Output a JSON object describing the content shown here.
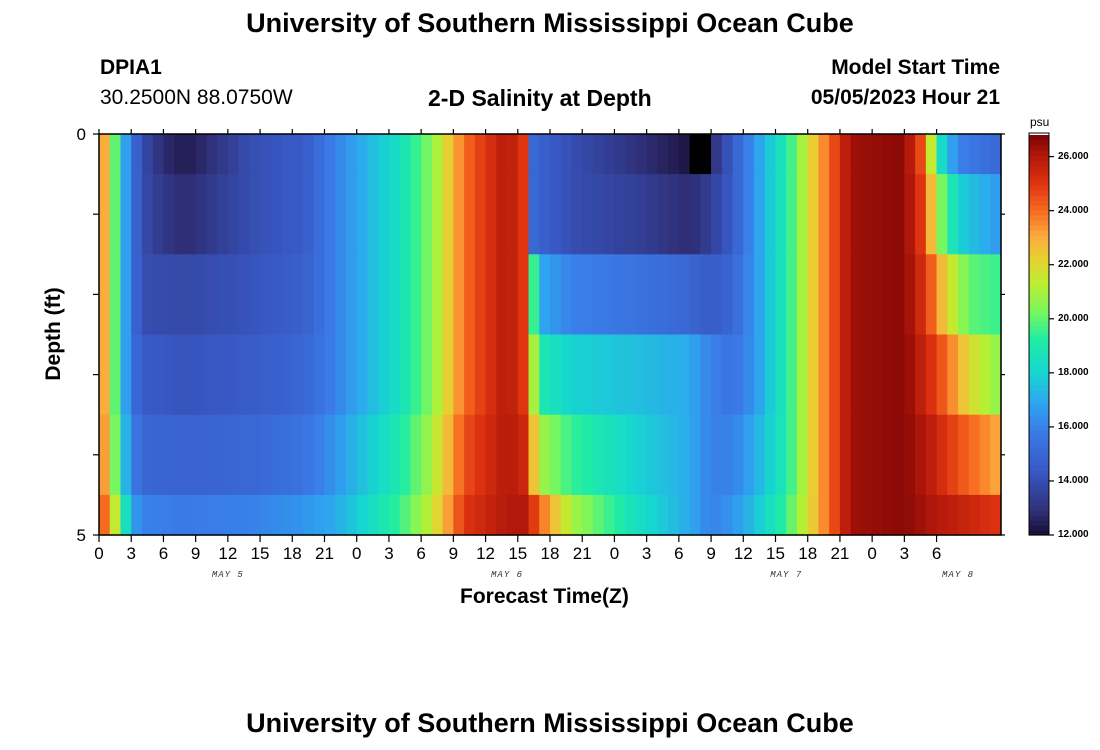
{
  "header": {
    "title": "University of Southern Mississippi Ocean Cube",
    "station": "DPIA1",
    "coords": "30.2500N  88.0750W",
    "plot_title": "2-D Salinity at Depth",
    "model_start_label": "Model Start Time",
    "model_start_value": "05/05/2023 Hour 21"
  },
  "footer": {
    "title": "University of Southern Mississippi Ocean Cube"
  },
  "colorbar": {
    "unit": "psu",
    "min": 12.0,
    "max": 26.8,
    "tick_labels": [
      "26.000",
      "24.000",
      "22.000",
      "20.000",
      "18.000",
      "16.000",
      "14.000",
      "12.000"
    ],
    "tick_values": [
      26,
      24,
      22,
      20,
      18,
      16,
      14,
      12
    ]
  },
  "chart_data": {
    "type": "heatmap",
    "title": "2-D Salinity at Depth",
    "xlabel": "Forecast Time(Z)",
    "ylabel": "Depth (ft)",
    "x_hours": [
      0,
      84
    ],
    "y_range": [
      0,
      5
    ],
    "y_tick_labels": [
      "0",
      "5"
    ],
    "x_tick_labels": [
      "0",
      "3",
      "6",
      "9",
      "12",
      "15",
      "18",
      "21",
      "0",
      "3",
      "6",
      "9",
      "12",
      "15",
      "18",
      "21",
      "0",
      "3",
      "6",
      "9",
      "12",
      "15",
      "18",
      "21",
      "0",
      "3",
      "6"
    ],
    "day_labels": [
      {
        "label": "MAY 5",
        "hour": 12
      },
      {
        "label": "MAY 6",
        "hour": 38
      },
      {
        "label": "MAY 7",
        "hour": 64
      },
      {
        "label": "MAY 8",
        "hour": 80
      }
    ],
    "layers": [
      "0-0.5 ft",
      "0.5-1.5 ft",
      "1.5-2.5 ft",
      "2.5-3.5 ft",
      "3.5-4.5 ft",
      "4.5-5 ft"
    ],
    "series": [
      {
        "name": "0-0.5 ft",
        "keyframes": [
          [
            0,
            24
          ],
          [
            1,
            22
          ],
          [
            2,
            18
          ],
          [
            3,
            15.5
          ],
          [
            4,
            14
          ],
          [
            6,
            12.8
          ],
          [
            8,
            12.4
          ],
          [
            10,
            12.8
          ],
          [
            14,
            14
          ],
          [
            19,
            14.5
          ],
          [
            22,
            16
          ],
          [
            28,
            18.5
          ],
          [
            31,
            20.5
          ],
          [
            34,
            24
          ],
          [
            38,
            26
          ],
          [
            39.5,
            25
          ],
          [
            40,
            22
          ],
          [
            40.5,
            15
          ],
          [
            44,
            14
          ],
          [
            50,
            13
          ],
          [
            55,
            12.2
          ],
          [
            55.5,
            11.5
          ],
          [
            56.5,
            11.5
          ],
          [
            57,
            12.8
          ],
          [
            59,
            14.5
          ],
          [
            61,
            16.5
          ],
          [
            64,
            19
          ],
          [
            67,
            23
          ],
          [
            70,
            26.3
          ],
          [
            75,
            26.6
          ],
          [
            77,
            24
          ],
          [
            78,
            19
          ],
          [
            80,
            16
          ],
          [
            84,
            15
          ]
        ]
      },
      {
        "name": "0.5-1.5 ft",
        "keyframes": [
          [
            0,
            24
          ],
          [
            1,
            22
          ],
          [
            2,
            18
          ],
          [
            3,
            15.5
          ],
          [
            4,
            14
          ],
          [
            6,
            13.2
          ],
          [
            8,
            12.8
          ],
          [
            10,
            13.2
          ],
          [
            14,
            14
          ],
          [
            19,
            14.5
          ],
          [
            22,
            16
          ],
          [
            28,
            18.5
          ],
          [
            31,
            20.5
          ],
          [
            34,
            24
          ],
          [
            38,
            26
          ],
          [
            39.5,
            25
          ],
          [
            40,
            22
          ],
          [
            40.5,
            15
          ],
          [
            44,
            14
          ],
          [
            50,
            13.5
          ],
          [
            55,
            12.8
          ],
          [
            57,
            13.5
          ],
          [
            59,
            14.5
          ],
          [
            61,
            16.5
          ],
          [
            64,
            19
          ],
          [
            67,
            23
          ],
          [
            70,
            26.3
          ],
          [
            75,
            26.6
          ],
          [
            77,
            24.5
          ],
          [
            78,
            21
          ],
          [
            80,
            18
          ],
          [
            84,
            16.5
          ]
        ]
      },
      {
        "name": "1.5-2.5 ft",
        "keyframes": [
          [
            0,
            24
          ],
          [
            1,
            22
          ],
          [
            2,
            18
          ],
          [
            3,
            15.5
          ],
          [
            4,
            14
          ],
          [
            8,
            13.8
          ],
          [
            14,
            14.2
          ],
          [
            19,
            14.7
          ],
          [
            22,
            16
          ],
          [
            28,
            18.5
          ],
          [
            31,
            20.5
          ],
          [
            34,
            24
          ],
          [
            38,
            26
          ],
          [
            39.5,
            25
          ],
          [
            40,
            22
          ],
          [
            41,
            17
          ],
          [
            44,
            16
          ],
          [
            50,
            15.5
          ],
          [
            55,
            15
          ],
          [
            57,
            14.5
          ],
          [
            59,
            15
          ],
          [
            61,
            16.5
          ],
          [
            64,
            19
          ],
          [
            67,
            23
          ],
          [
            70,
            26.3
          ],
          [
            75,
            26.6
          ],
          [
            77,
            25
          ],
          [
            79,
            22
          ],
          [
            81,
            20
          ],
          [
            84,
            19.5
          ]
        ]
      },
      {
        "name": "2.5-3.5 ft",
        "keyframes": [
          [
            0,
            24
          ],
          [
            1,
            22
          ],
          [
            2,
            18
          ],
          [
            3,
            15.5
          ],
          [
            4,
            14.5
          ],
          [
            8,
            14.2
          ],
          [
            14,
            14.5
          ],
          [
            19,
            15
          ],
          [
            22,
            16
          ],
          [
            28,
            18.5
          ],
          [
            31,
            20.5
          ],
          [
            34,
            24
          ],
          [
            38,
            26
          ],
          [
            39.5,
            25
          ],
          [
            40,
            23
          ],
          [
            41,
            19
          ],
          [
            44,
            18
          ],
          [
            50,
            17.5
          ],
          [
            55,
            17
          ],
          [
            57,
            16
          ],
          [
            59,
            15.5
          ],
          [
            61,
            16.5
          ],
          [
            64,
            19
          ],
          [
            67,
            23
          ],
          [
            70,
            26.3
          ],
          [
            75,
            26.6
          ],
          [
            77,
            25.5
          ],
          [
            79,
            24
          ],
          [
            81,
            22
          ],
          [
            84,
            20.5
          ]
        ]
      },
      {
        "name": "3.5-4.5 ft",
        "keyframes": [
          [
            0,
            24.5
          ],
          [
            1,
            22
          ],
          [
            2,
            18.5
          ],
          [
            3,
            16
          ],
          [
            4,
            15
          ],
          [
            8,
            14.8
          ],
          [
            14,
            15
          ],
          [
            19,
            15.5
          ],
          [
            22,
            16.5
          ],
          [
            28,
            19
          ],
          [
            31,
            21
          ],
          [
            34,
            24.5
          ],
          [
            38,
            26
          ],
          [
            39.5,
            25.5
          ],
          [
            40,
            24
          ],
          [
            41,
            21
          ],
          [
            44,
            19.5
          ],
          [
            50,
            18
          ],
          [
            55,
            17
          ],
          [
            57,
            16
          ],
          [
            59,
            16
          ],
          [
            61,
            17
          ],
          [
            64,
            19
          ],
          [
            67,
            23
          ],
          [
            70,
            26.3
          ],
          [
            75,
            26.6
          ],
          [
            77,
            26
          ],
          [
            80,
            24.5
          ],
          [
            84,
            23
          ]
        ]
      },
      {
        "name": "4.5-5 ft",
        "keyframes": [
          [
            0,
            25
          ],
          [
            1,
            23
          ],
          [
            2,
            20
          ],
          [
            3,
            17
          ],
          [
            4,
            16
          ],
          [
            8,
            15.8
          ],
          [
            14,
            16
          ],
          [
            19,
            16.5
          ],
          [
            22,
            17
          ],
          [
            28,
            19.5
          ],
          [
            31,
            21.5
          ],
          [
            34,
            25
          ],
          [
            38,
            26
          ],
          [
            39.5,
            26
          ],
          [
            40,
            25.5
          ],
          [
            42,
            23
          ],
          [
            44,
            21
          ],
          [
            50,
            18.5
          ],
          [
            55,
            17
          ],
          [
            57,
            16
          ],
          [
            59,
            16.5
          ],
          [
            61,
            17.5
          ],
          [
            64,
            19.5
          ],
          [
            67,
            23
          ],
          [
            70,
            26.3
          ],
          [
            75,
            26.6
          ],
          [
            78,
            26
          ],
          [
            84,
            25
          ]
        ]
      }
    ]
  }
}
